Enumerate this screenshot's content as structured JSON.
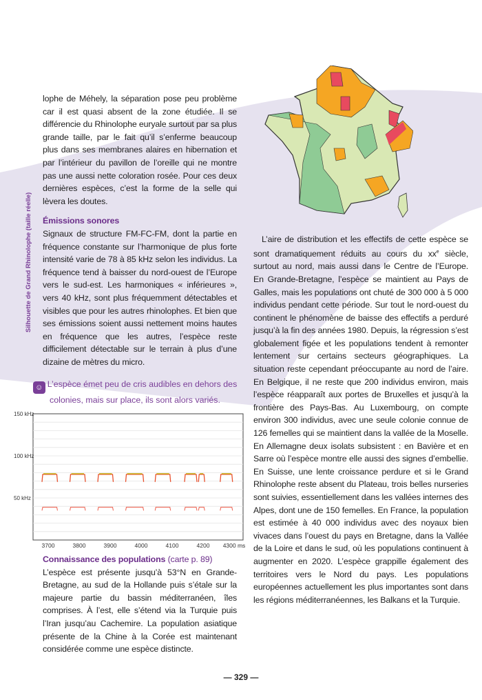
{
  "left": {
    "p1": "lophe de Méhely, la séparation pose peu problème car il est quasi absent de la zone étudiée. Il se différencie du Rhinolophe euryale surtout par sa plus grande taille, par le fait qu’il s’enferme beaucoup plus dans ses membranes alaires en hibernation et par l’intérieur du pavillon de l’oreille qui ne montre pas une aussi nette coloration rosée. Pour ces deux dernières espèces, c’est la forme de la selle qui lèvera les doutes.",
    "h_emissions": "Émissions sonores",
    "p2": "Signaux de structure FM-FC-FM, dont la partie en fréquence constante sur l’harmonique de plus forte intensité varie de 78 à 85 kHz selon les individus. La fréquence tend à baisser du nord-ouest de l’Europe vers le sud-est. Les harmoniques « inférieures », vers 40 kHz, sont plus fréquemment détectables et visibles que pour les autres rhinolophes. Et bien que ses émissions soient aussi nettement moins hautes en fréquence que les autres, l’espèce reste difficilement détectable sur le terrain à plus d’une dizaine de mètres du micro.",
    "note": "L’espèce émet peu de cris audibles en dehors des colonies, mais sur place, ils sont alors variés.",
    "h_pop": "Connaissance des populations",
    "h_pop_ref": "(carte p. 89)",
    "p3": "L’espèce est présente jusqu’à 53°N en Grande-Bretagne, au sud de la Hollande puis s’étale sur la majeure partie du bassin méditerranéen, îles comprises. À l’est, elle s’étend via la Turquie puis l’Iran jusqu’au Cachemire. La population asiatique présente de la Chine à la Corée est maintenant considérée comme une espèce distincte."
  },
  "right": {
    "p1a": "L’aire de distribution et les effectifs de cette espèce se sont dramatiquement réduits au cours du xx",
    "p1sup": "e",
    "p1b": " siècle, surtout au nord, mais aussi dans le Centre de l’Europe. En Grande-Bretagne, l’espèce se maintient au Pays de Galles, mais les populations ont chuté de 300 000 à 5 000 individus pendant cette période. Sur tout le nord-ouest du continent le phénomène de baisse des effectifs a perduré jusqu’à la fin des années 1980. Depuis, la régression s’est globalement figée et les populations tendent à remonter lentement sur certains secteurs géographiques. La situation reste cependant préoccupante au nord de l’aire. En Belgique, il ne reste que 200 individus environ, mais l’espèce réapparaît aux portes de Bruxelles et jusqu’à la frontière des Pays-Bas. Au Luxembourg, on compte environ 300 individus, avec une seule colonie connue de 126 femelles qui se maintient dans la vallée de la Moselle. En Allemagne deux isolats subsistent : en Bavière et en Sarre où l’espèce montre elle aussi des signes d’embellie. En Suisse, une lente croissance perdure et si le Grand Rhinolophe reste absent du Plateau, trois belles nurseries sont suivies, essentiellement dans les vallées internes des Alpes, dont une de 150 femelles. En France, la population est estimée à 40 000 individus avec des noyaux bien vivaces dans l’ouest du pays en Bretagne, dans la Vallée de la Loire et dans le sud, où les populations continuent à augmenter en 2020. L’espèce grappille également des territoires vers le Nord du pays. Les populations européennes actuellement les plus importantes sont dans les régions méditerranéennes, les Balkans et la Turquie."
  },
  "sidebar_caption": "Silhouette de Grand Rhinolophe (taille réelle)",
  "folio": "— 329 —",
  "colors": {
    "accent": "#6b2d8a",
    "band": "#e4e0ee",
    "map_green": "#8fcb95",
    "map_light": "#d9e8b4",
    "map_orange": "#f5a623",
    "map_red": "#e84a5f"
  },
  "spectrogram": {
    "y_ticks": [
      "150 kHz",
      "100 kHz",
      "50 kHz"
    ],
    "x_ticks": [
      "3700",
      "3800",
      "3900",
      "4000",
      "4100",
      "4200",
      "4300 ms"
    ],
    "calls_start_ms": [
      3680,
      3770,
      3860,
      3950,
      4045,
      4140,
      4185,
      4255
    ],
    "calls_duration_ms": [
      50,
      50,
      50,
      58,
      50,
      40,
      20,
      40
    ],
    "cf_khz": 78,
    "harmonic_khz": 39
  }
}
